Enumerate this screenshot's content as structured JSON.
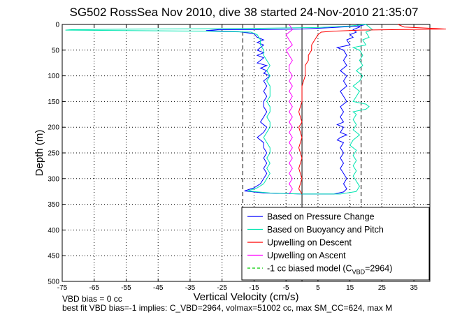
{
  "chart_data": {
    "type": "line",
    "title": "SG502 RossSea Nov 2010, dive 38 started 24-Nov-2010 21:35:07",
    "xlabel": "Vertical Velocity (cm/s)",
    "ylabel": "Depth (m)",
    "xlim": [
      -75,
      40
    ],
    "ylim": [
      0,
      500
    ],
    "y_reversed": true,
    "grid": true,
    "legend_placement": "bottom-right",
    "x_ticks": [
      "-75",
      "-65",
      "-55",
      "-45",
      "-35",
      "-25",
      "-15",
      "-5",
      "5",
      "15",
      "25",
      "35"
    ],
    "y_ticks": [
      "0",
      "50",
      "100",
      "150",
      "200",
      "250",
      "300",
      "350",
      "400",
      "450",
      "500"
    ],
    "reference_lines": {
      "zero_line_x": 0,
      "biased_model_x": [
        -18.5,
        18.5
      ]
    },
    "series": [
      {
        "name": "Based on Pressure Change",
        "color": "#0000ff",
        "points": [
          [
            20,
            0
          ],
          [
            18,
            3
          ],
          [
            10,
            6
          ],
          [
            0,
            9
          ],
          [
            -14,
            10
          ],
          [
            -26,
            10
          ],
          [
            -30,
            12
          ],
          [
            -20,
            14
          ],
          [
            -15,
            18
          ],
          [
            -14,
            25
          ],
          [
            -12,
            30
          ],
          [
            -14,
            35
          ],
          [
            -12,
            40
          ],
          [
            -13,
            45
          ],
          [
            -14,
            50
          ],
          [
            -12,
            55
          ],
          [
            -14,
            60
          ],
          [
            -12,
            65
          ],
          [
            -13,
            70
          ],
          [
            -14,
            75
          ],
          [
            -11,
            80
          ],
          [
            -13,
            85
          ],
          [
            -11,
            90
          ],
          [
            -12,
            95
          ],
          [
            -10,
            100
          ],
          [
            -12,
            110
          ],
          [
            -11,
            120
          ],
          [
            -12,
            130
          ],
          [
            -11,
            140
          ],
          [
            -12,
            150
          ],
          [
            -12,
            160
          ],
          [
            -11,
            170
          ],
          [
            -12,
            180
          ],
          [
            -13,
            190
          ],
          [
            -11,
            200
          ],
          [
            -12,
            210
          ],
          [
            -14,
            220
          ],
          [
            -12,
            230
          ],
          [
            -12,
            240
          ],
          [
            -11,
            250
          ],
          [
            -12,
            260
          ],
          [
            -11,
            270
          ],
          [
            -12,
            280
          ],
          [
            -11,
            290
          ],
          [
            -12,
            300
          ],
          [
            -13,
            310
          ],
          [
            -15,
            318
          ],
          [
            -18,
            324
          ],
          [
            -12,
            328
          ],
          [
            0,
            330
          ],
          [
            10,
            330
          ],
          [
            13,
            326
          ],
          [
            14,
            320
          ],
          [
            13,
            310
          ],
          [
            14,
            300
          ],
          [
            13,
            290
          ],
          [
            12,
            280
          ],
          [
            13,
            270
          ],
          [
            12,
            260
          ],
          [
            13,
            250
          ],
          [
            12,
            240
          ],
          [
            13,
            230
          ],
          [
            11,
            225
          ],
          [
            12,
            220
          ],
          [
            14,
            215
          ],
          [
            12,
            210
          ],
          [
            13,
            200
          ],
          [
            11,
            195
          ],
          [
            13,
            190
          ],
          [
            12,
            180
          ],
          [
            13,
            170
          ],
          [
            12,
            160
          ],
          [
            14,
            150
          ],
          [
            13,
            140
          ],
          [
            12,
            130
          ],
          [
            14,
            120
          ],
          [
            13,
            110
          ],
          [
            14,
            100
          ],
          [
            12,
            90
          ],
          [
            14,
            80
          ],
          [
            13,
            70
          ],
          [
            14,
            60
          ],
          [
            13,
            50
          ],
          [
            11,
            45
          ],
          [
            15,
            40
          ],
          [
            14,
            30
          ],
          [
            16,
            25
          ],
          [
            15,
            20
          ],
          [
            17,
            15
          ],
          [
            16,
            10
          ],
          [
            18,
            5
          ],
          [
            17,
            0
          ]
        ]
      },
      {
        "name": "Based on Buoyancy and Pitch",
        "color": "#00e5b0",
        "points": [
          [
            20,
            0
          ],
          [
            15,
            3
          ],
          [
            5,
            6
          ],
          [
            -20,
            8
          ],
          [
            -50,
            9
          ],
          [
            -72,
            10
          ],
          [
            -74,
            11
          ],
          [
            -55,
            12
          ],
          [
            -30,
            13
          ],
          [
            -16,
            15
          ],
          [
            -14,
            20
          ],
          [
            -13,
            30
          ],
          [
            -13,
            40
          ],
          [
            -12,
            50
          ],
          [
            -12,
            60
          ],
          [
            -11,
            70
          ],
          [
            -10,
            80
          ],
          [
            -11,
            90
          ],
          [
            -10,
            100
          ],
          [
            -11,
            110
          ],
          [
            -10,
            120
          ],
          [
            -10,
            130
          ],
          [
            -10,
            140
          ],
          [
            -11,
            150
          ],
          [
            -10,
            160
          ],
          [
            -10,
            170
          ],
          [
            -11,
            180
          ],
          [
            -10,
            190
          ],
          [
            -10,
            200
          ],
          [
            -11,
            210
          ],
          [
            -12,
            220
          ],
          [
            -11,
            230
          ],
          [
            -10,
            240
          ],
          [
            -10,
            250
          ],
          [
            -11,
            260
          ],
          [
            -10,
            270
          ],
          [
            -11,
            280
          ],
          [
            -10,
            290
          ],
          [
            -11,
            300
          ],
          [
            -12,
            310
          ],
          [
            -14,
            318
          ],
          [
            -17,
            324
          ],
          [
            -10,
            328
          ],
          [
            0,
            330
          ],
          [
            12,
            330
          ],
          [
            17,
            325
          ],
          [
            18,
            315
          ],
          [
            17,
            305
          ],
          [
            16,
            295
          ],
          [
            17,
            285
          ],
          [
            16,
            275
          ],
          [
            17,
            265
          ],
          [
            16,
            255
          ],
          [
            17,
            245
          ],
          [
            15,
            235
          ],
          [
            16,
            225
          ],
          [
            18,
            215
          ],
          [
            16,
            205
          ],
          [
            17,
            195
          ],
          [
            16,
            185
          ],
          [
            17,
            175
          ],
          [
            16,
            170
          ],
          [
            20,
            165
          ],
          [
            21,
            160
          ],
          [
            20,
            155
          ],
          [
            16,
            150
          ],
          [
            17,
            140
          ],
          [
            18,
            130
          ],
          [
            16,
            120
          ],
          [
            18,
            110
          ],
          [
            19,
            100
          ],
          [
            17,
            90
          ],
          [
            19,
            80
          ],
          [
            18,
            70
          ],
          [
            19,
            60
          ],
          [
            18,
            50
          ],
          [
            16,
            45
          ],
          [
            20,
            40
          ],
          [
            19,
            30
          ],
          [
            21,
            25
          ],
          [
            20,
            15
          ],
          [
            22,
            10
          ],
          [
            21,
            5
          ],
          [
            20,
            0
          ]
        ]
      },
      {
        "name": "Upwelling on Descent",
        "color": "#ff0000",
        "points": [
          [
            30,
            0
          ],
          [
            32,
            5
          ],
          [
            42,
            8
          ],
          [
            45,
            9
          ],
          [
            30,
            10
          ],
          [
            18,
            11
          ],
          [
            10,
            13
          ],
          [
            6,
            15
          ],
          [
            5,
            20
          ],
          [
            4,
            30
          ],
          [
            3,
            40
          ],
          [
            3,
            50
          ],
          [
            2,
            60
          ],
          [
            2,
            70
          ],
          [
            1,
            80
          ],
          [
            1,
            90
          ],
          [
            1,
            100
          ],
          [
            0,
            120
          ],
          [
            0,
            150
          ],
          [
            -1,
            170
          ],
          [
            0,
            190
          ],
          [
            -1,
            200
          ],
          [
            0,
            220
          ],
          [
            -1,
            240
          ],
          [
            0,
            260
          ],
          [
            -1,
            280
          ],
          [
            0,
            300
          ],
          [
            -1,
            320
          ],
          [
            0,
            330
          ]
        ]
      },
      {
        "name": "Upwelling on Ascent",
        "color": "#ff00ff",
        "points": [
          [
            -4,
            0
          ],
          [
            -3,
            10
          ],
          [
            -5,
            20
          ],
          [
            -4,
            30
          ],
          [
            -3,
            40
          ],
          [
            -5,
            50
          ],
          [
            -4,
            60
          ],
          [
            -3,
            70
          ],
          [
            -4,
            80
          ],
          [
            -4,
            90
          ],
          [
            -3,
            100
          ],
          [
            -4,
            110
          ],
          [
            -3,
            120
          ],
          [
            -4,
            130
          ],
          [
            -3,
            140
          ],
          [
            -4,
            150
          ],
          [
            -3,
            160
          ],
          [
            -4,
            170
          ],
          [
            -3,
            180
          ],
          [
            -4,
            190
          ],
          [
            -3,
            200
          ],
          [
            -4,
            210
          ],
          [
            -3,
            220
          ],
          [
            -4,
            230
          ],
          [
            -3,
            240
          ],
          [
            -4,
            250
          ],
          [
            -3,
            260
          ],
          [
            -4,
            270
          ],
          [
            -3,
            280
          ],
          [
            -4,
            290
          ],
          [
            -3,
            300
          ],
          [
            -4,
            310
          ],
          [
            -3,
            320
          ],
          [
            -4,
            330
          ]
        ]
      },
      {
        "name": "-1 cc biased model (C",
        "name_sub": "VBD",
        "name_suffix": "=2964)",
        "color": "#00cc00",
        "dashed": true
      }
    ]
  },
  "notes": {
    "line1": "VBD bias = 0 cc",
    "line2": "best fit VBD bias=-1 implies: C_VBD=2964, volmax=51002 cc, max SM_CC=624, max M"
  }
}
